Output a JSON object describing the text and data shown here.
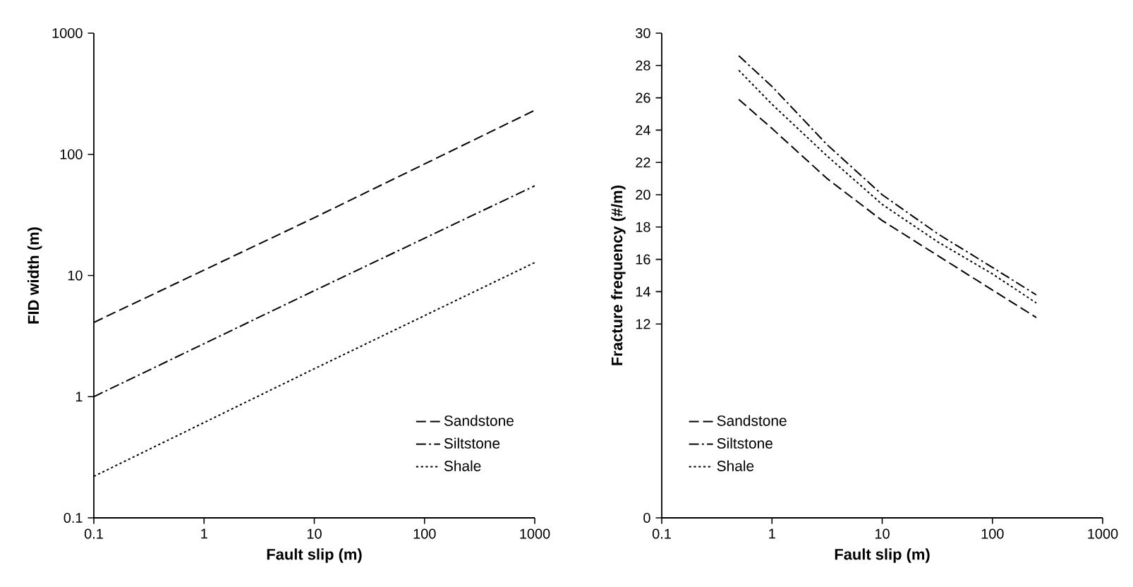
{
  "chart_data": [
    {
      "type": "line",
      "xlabel": "Fault slip (m)",
      "ylabel": "FID width (m)",
      "log": "xy",
      "xlim": [
        0.1,
        1000
      ],
      "ylim": [
        0.1,
        1000
      ],
      "xticks": [
        0.1,
        1,
        10,
        100,
        1000
      ],
      "yticks": [
        0.1,
        1,
        10,
        100,
        1000
      ],
      "grid": false,
      "legend": "bottom right",
      "marker": "none",
      "series": [
        {
          "name": "Sandstone",
          "color": "#000000",
          "line_style": "dashed",
          "x": [
            0.1,
            10,
            1000
          ],
          "values": [
            4.1,
            30,
            231
          ]
        },
        {
          "name": "Siltstone",
          "color": "#000000",
          "line_style": "dashdot",
          "x": [
            0.1,
            10,
            1000
          ],
          "values": [
            1,
            7.5,
            55
          ]
        },
        {
          "name": "Shale",
          "color": "#000000",
          "line_style": "dotted",
          "x": [
            0.1,
            10,
            1000
          ],
          "values": [
            0.22,
            1.7,
            12.8
          ]
        }
      ]
    },
    {
      "type": "line",
      "xlabel": "Fault slip (m)",
      "ylabel": "Fracture frequency (#/m)",
      "log": "x",
      "xlim": [
        0.1,
        1000
      ],
      "ylim": [
        0,
        30
      ],
      "xticks": [
        0.1,
        1,
        10,
        100,
        1000
      ],
      "yticks": [
        0,
        12,
        14,
        16,
        18,
        20,
        22,
        24,
        26,
        28,
        30
      ],
      "grid": false,
      "legend": "bottom left",
      "marker": "none",
      "series": [
        {
          "name": "Sandstone",
          "color": "#000000",
          "line_style": "dashed",
          "x": [
            0.5,
            1,
            3.16,
            10,
            31.6,
            100,
            250
          ],
          "values": [
            25.9,
            24.1,
            21.0,
            18.4,
            16.25,
            14.1,
            12.4
          ]
        },
        {
          "name": "Siltstone",
          "color": "#000000",
          "line_style": "dashdot",
          "x": [
            0.5,
            1,
            3.16,
            10,
            31.6,
            100,
            250
          ],
          "values": [
            28.6,
            26.7,
            23.1,
            20.0,
            17.6,
            15.5,
            13.8
          ]
        },
        {
          "name": "Shale",
          "color": "#000000",
          "line_style": "dotted",
          "x": [
            0.5,
            1,
            3.16,
            10,
            31.6,
            100,
            250
          ],
          "values": [
            27.7,
            25.6,
            22.4,
            19.4,
            17.1,
            15.1,
            13.3
          ]
        }
      ]
    }
  ]
}
